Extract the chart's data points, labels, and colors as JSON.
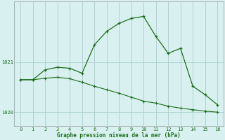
{
  "xlabel": "Graphe pression niveau de la mer (hPa)",
  "background_color": "#d8f0f0",
  "grid_color": "#aacece",
  "line_color": "#1a6e1a",
  "x_line1": [
    0,
    1,
    2,
    3,
    4,
    5,
    6,
    7,
    8,
    9,
    10,
    11,
    12,
    13,
    14,
    15,
    16
  ],
  "y_line1": [
    1020.65,
    1020.65,
    1020.85,
    1020.9,
    1020.88,
    1020.78,
    1021.35,
    1021.62,
    1021.78,
    1021.88,
    1021.92,
    1021.52,
    1021.18,
    1021.28,
    1020.52,
    1020.35,
    1020.15
  ],
  "x_line2": [
    0,
    1,
    2,
    3,
    4,
    5,
    6,
    7,
    8,
    9,
    10,
    11,
    12,
    13,
    14,
    15,
    16
  ],
  "y_line2": [
    1020.65,
    1020.65,
    1020.68,
    1020.7,
    1020.67,
    1020.6,
    1020.52,
    1020.45,
    1020.38,
    1020.3,
    1020.22,
    1020.18,
    1020.12,
    1020.08,
    1020.05,
    1020.02,
    1020.0
  ],
  "ylim": [
    1019.72,
    1022.22
  ],
  "yticks": [
    1020,
    1021
  ],
  "xlim": [
    -0.5,
    16.5
  ],
  "xticks": [
    0,
    1,
    2,
    3,
    4,
    5,
    6,
    7,
    8,
    9,
    10,
    11,
    12,
    13,
    14,
    15,
    16
  ]
}
